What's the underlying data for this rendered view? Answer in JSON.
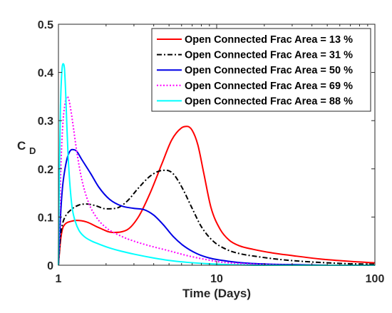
{
  "chart_data": {
    "type": "line",
    "xlabel": "Time (Days)",
    "ylabel_main": "C",
    "ylabel_sub": "D",
    "xscale": "log",
    "xlim": [
      1,
      100
    ],
    "ylim": [
      0,
      0.5
    ],
    "xticks": [
      {
        "value": 1,
        "label": "1"
      },
      {
        "value": 10,
        "label": "10"
      },
      {
        "value": 100,
        "label": "100"
      }
    ],
    "yticks": [
      {
        "value": 0,
        "label": "0"
      },
      {
        "value": 0.1,
        "label": "0.1"
      },
      {
        "value": 0.2,
        "label": "0.2"
      },
      {
        "value": 0.3,
        "label": "0.3"
      },
      {
        "value": 0.4,
        "label": "0.4"
      },
      {
        "value": 0.5,
        "label": "0.5"
      }
    ],
    "grid": false,
    "legend_position": "top-right",
    "series": [
      {
        "name": "Open Connected Frac Area = 13 %",
        "color": "#ff0000",
        "dash": "solid",
        "x": [
          1.0,
          1.03,
          1.06,
          1.1,
          1.2,
          1.3,
          1.5,
          1.8,
          2.2,
          2.7,
          3.2,
          3.8,
          4.5,
          5.2,
          6.0,
          6.5,
          7.0,
          7.6,
          8.3,
          9.2,
          10.5,
          12,
          14,
          17,
          22,
          30,
          45,
          70,
          100
        ],
        "y": [
          0.0,
          0.05,
          0.075,
          0.085,
          0.091,
          0.093,
          0.09,
          0.078,
          0.068,
          0.073,
          0.1,
          0.15,
          0.21,
          0.26,
          0.285,
          0.288,
          0.28,
          0.25,
          0.19,
          0.12,
          0.075,
          0.052,
          0.04,
          0.033,
          0.026,
          0.02,
          0.013,
          0.008,
          0.005
        ]
      },
      {
        "name": "Open Connected Frac Area = 31 %",
        "color": "#000000",
        "dash": "dashdot",
        "x": [
          1.0,
          1.03,
          1.06,
          1.1,
          1.2,
          1.35,
          1.5,
          1.7,
          2.0,
          2.3,
          2.7,
          3.2,
          3.8,
          4.4,
          4.8,
          5.3,
          6.0,
          7.0,
          8.0,
          9.5,
          11.5,
          14,
          18,
          25,
          35,
          50,
          70,
          100
        ],
        "y": [
          0.0,
          0.06,
          0.085,
          0.1,
          0.115,
          0.125,
          0.127,
          0.124,
          0.117,
          0.118,
          0.132,
          0.16,
          0.185,
          0.196,
          0.197,
          0.19,
          0.163,
          0.118,
          0.08,
          0.05,
          0.033,
          0.024,
          0.018,
          0.012,
          0.008,
          0.005,
          0.003,
          0.002
        ]
      },
      {
        "name": "Open Connected Frac Area = 50 %",
        "color": "#0000e6",
        "dash": "solid",
        "x": [
          1.0,
          1.03,
          1.06,
          1.1,
          1.15,
          1.22,
          1.3,
          1.4,
          1.6,
          1.8,
          2.1,
          2.5,
          3.0,
          3.5,
          4.0,
          4.6,
          5.3,
          6.2,
          7.5,
          9.0,
          12,
          16,
          22,
          35,
          60,
          100
        ],
        "y": [
          0.0,
          0.1,
          0.16,
          0.2,
          0.228,
          0.24,
          0.237,
          0.22,
          0.19,
          0.162,
          0.137,
          0.123,
          0.118,
          0.115,
          0.104,
          0.084,
          0.06,
          0.04,
          0.024,
          0.015,
          0.008,
          0.004,
          0.002,
          0.001,
          0.0,
          0.0
        ]
      },
      {
        "name": "Open Connected Frac Area = 69 %",
        "color": "#ff00ff",
        "dash": "dotted",
        "x": [
          1.0,
          1.02,
          1.04,
          1.07,
          1.1,
          1.13,
          1.16,
          1.2,
          1.25,
          1.3,
          1.4,
          1.55,
          1.75,
          2.0,
          2.5,
          3.0,
          4.0,
          5.0,
          6.5,
          8.5,
          11,
          15,
          22,
          35,
          60,
          100
        ],
        "y": [
          0.0,
          0.12,
          0.22,
          0.3,
          0.335,
          0.35,
          0.345,
          0.32,
          0.28,
          0.24,
          0.18,
          0.13,
          0.098,
          0.078,
          0.06,
          0.05,
          0.038,
          0.03,
          0.02,
          0.012,
          0.006,
          0.003,
          0.001,
          0.0,
          0.0,
          0.0
        ]
      },
      {
        "name": "Open Connected Frac Area = 88 %",
        "color": "#00ffff",
        "dash": "solid",
        "x": [
          1.0,
          1.015,
          1.03,
          1.05,
          1.07,
          1.09,
          1.11,
          1.13,
          1.15,
          1.18,
          1.22,
          1.28,
          1.35,
          1.45,
          1.6,
          1.8,
          2.1,
          2.5,
          3.0,
          4.0,
          5.0,
          6.5,
          9,
          13,
          20,
          35,
          60,
          100
        ],
        "y": [
          0.0,
          0.2,
          0.33,
          0.4,
          0.418,
          0.41,
          0.36,
          0.29,
          0.23,
          0.17,
          0.12,
          0.09,
          0.072,
          0.06,
          0.051,
          0.044,
          0.036,
          0.029,
          0.023,
          0.015,
          0.01,
          0.006,
          0.003,
          0.001,
          0.0,
          0.0,
          0.0,
          0.0
        ]
      }
    ]
  }
}
